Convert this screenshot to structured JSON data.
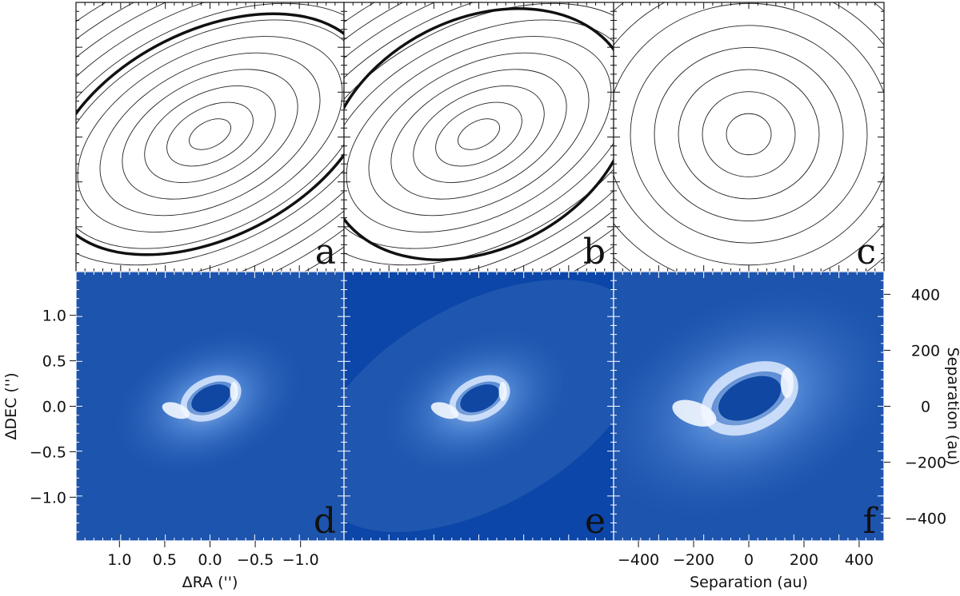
{
  "chart_data": [
    {
      "type": "contour",
      "panel_label": "a"
    },
    {
      "type": "contour",
      "panel_label": "b"
    },
    {
      "type": "contour",
      "panel_label": "c"
    },
    {
      "type": "image",
      "panel_label": "d",
      "xlabel": "ΔRA ('')",
      "ylabel": "ΔDEC ('')",
      "xlim": [
        1.48,
        -1.48
      ],
      "xticks": [
        {
          "value": 1.0,
          "label": "1.0"
        },
        0.5,
        {
          "value": 0.0,
          "label": "0.0"
        },
        {
          "value": -0.5,
          "label": "−0.5"
        },
        {
          "value": -1.0,
          "label": "−1.0"
        }
      ],
      "ylim": [
        -1.48,
        1.48
      ],
      "yticks": [
        {
          "value": -1.0,
          "label": "−1.0"
        },
        {
          "value": -0.5,
          "label": "−0.5"
        },
        {
          "value": 0.0,
          "label": "0.0"
        },
        0.5,
        {
          "value": 1.0,
          "label": "1.0"
        }
      ]
    },
    {
      "type": "image",
      "panel_label": "e"
    },
    {
      "type": "image",
      "panel_label": "f",
      "xlabel": "Separation (au)",
      "y2label": "Separation (au)",
      "xlim": [
        -490,
        490
      ],
      "xticks": [
        {
          "value": -400,
          "label": "−400"
        },
        {
          "value": -200,
          "label": "−200"
        },
        0,
        200,
        400
      ],
      "y2lim": [
        -481,
        481
      ],
      "y2ticks": [
        {
          "value": -400,
          "label": "−400"
        },
        {
          "value": -200,
          "label": "−200"
        },
        0,
        200,
        400
      ]
    }
  ]
}
